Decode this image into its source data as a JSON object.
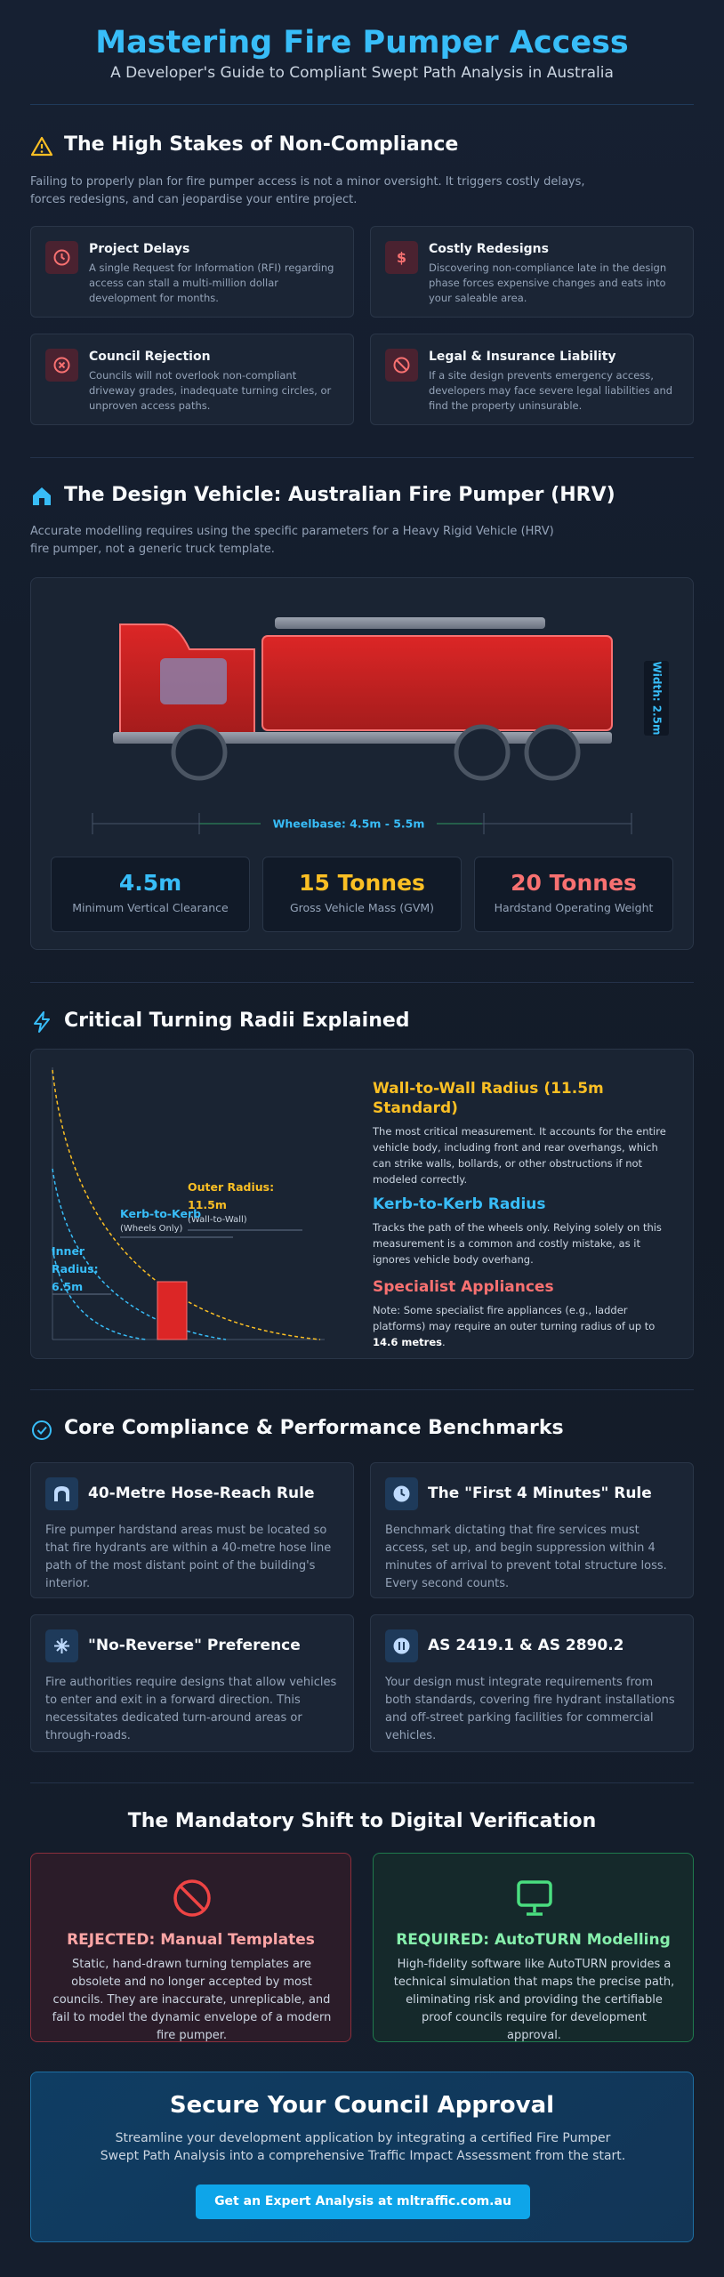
{
  "header": {
    "title": "Mastering Fire Pumper Access",
    "subtitle": "A Developer's Guide to Compliant Swept Path Analysis in Australia"
  },
  "stakes": {
    "heading": "The High Stakes of Non-Compliance",
    "intro": "Failing to properly plan for fire pumper access is not a minor oversight. It triggers costly delays, forces redesigns, and can jeopardise your entire project.",
    "cards": [
      {
        "title": "Project Delays",
        "text": "A single Request for Information (RFI) regarding access can stall a multi-million dollar development for months."
      },
      {
        "title": "Costly Redesigns",
        "text": "Discovering non-compliance late in the design phase forces expensive changes and eats into your saleable area."
      },
      {
        "title": "Council Rejection",
        "text": "Councils will not overlook non-compliant driveway grades, inadequate turning circles, or unproven access paths."
      },
      {
        "title": "Legal & Insurance Liability",
        "text": "If a site design prevents emergency access, developers may face severe legal liabilities and find the property uninsurable."
      }
    ]
  },
  "vehicle": {
    "heading": "The Design Vehicle: Australian Fire Pumper (HRV)",
    "intro": "Accurate modelling requires using the specific parameters for a Heavy Rigid Vehicle (HRV) fire pumper, not a generic truck template.",
    "width_label": "Width: 2.5m",
    "wheelbase_label": "Wheelbase: 4.5m - 5.5m",
    "stats": [
      {
        "value": "4.5m",
        "label": "Minimum Vertical Clearance"
      },
      {
        "value": "15 Tonnes",
        "label": "Gross Vehicle Mass (GVM)"
      },
      {
        "value": "20 Tonnes",
        "label": "Hardstand Operating Weight"
      }
    ]
  },
  "turning": {
    "heading": "Critical Turning Radii Explained",
    "diagram": {
      "outer_label": "Outer Radius:",
      "outer_value": "11.5m",
      "wall_note": "(Wall-to-Wall)",
      "kerb_label": "Kerb-to-Kerb",
      "kerb_note": "(Wheels Only)",
      "inner_label": "Inner Radius:",
      "inner_value": "6.5m"
    },
    "items": [
      {
        "title": "Wall-to-Wall Radius (11.5m Standard)",
        "text": "The most critical measurement. It accounts for the entire vehicle body, including front and rear overhangs, which can strike walls, bollards, or other obstructions if not modeled correctly."
      },
      {
        "title": "Kerb-to-Kerb Radius",
        "text": "Tracks the path of the wheels only. Relying solely on this measurement is a common and costly mistake, as it ignores vehicle body overhang."
      },
      {
        "title": "Specialist Appliances",
        "text": "Note: Some specialist fire appliances (e.g., ladder platforms) may require an outer turning radius of up to ",
        "strong": "14.6 metres",
        "text_end": "."
      }
    ]
  },
  "compliance": {
    "heading": "Core Compliance & Performance Benchmarks",
    "cards": [
      {
        "title": "40-Metre Hose-Reach Rule",
        "text": "Fire pumper hardstand areas must be located so that fire hydrants are within a 40-metre hose line path of the most distant point of the building's interior."
      },
      {
        "title": "The \"First 4 Minutes\" Rule",
        "text": "Benchmark dictating that fire services must access, set up, and begin suppression within 4 minutes of arrival to prevent total structure loss. Every second counts."
      },
      {
        "title": "\"No-Reverse\" Preference",
        "text": "Fire authorities require designs that allow vehicles to enter and exit in a forward direction. This necessitates dedicated turn-around areas or through-roads."
      },
      {
        "title": "AS 2419.1 & AS 2890.2",
        "text": "Your design must integrate requirements from both standards, covering fire hydrant installations and off-street parking facilities for commercial vehicles."
      }
    ]
  },
  "shift": {
    "heading": "The Mandatory Shift to Digital Verification",
    "rejected": {
      "title": "REJECTED: Manual Templates",
      "text": "Static, hand-drawn turning templates are obsolete and no longer accepted by most councils. They are inaccurate, unreplicable, and fail to model the dynamic envelope of a modern fire pumper."
    },
    "required": {
      "title": "REQUIRED: AutoTURN Modelling",
      "text": "High-fidelity software like AutoTURN provides a technical simulation that maps the precise path, eliminating risk and providing the certifiable proof councils require for development approval."
    }
  },
  "cta": {
    "title": "Secure Your Council Approval",
    "text": "Streamline your development application by integrating a certified Fire Pumper Swept Path Analysis into a comprehensive Traffic Impact Assessment from the start.",
    "button": "Get an Expert Analysis at mltraffic.com.au"
  }
}
